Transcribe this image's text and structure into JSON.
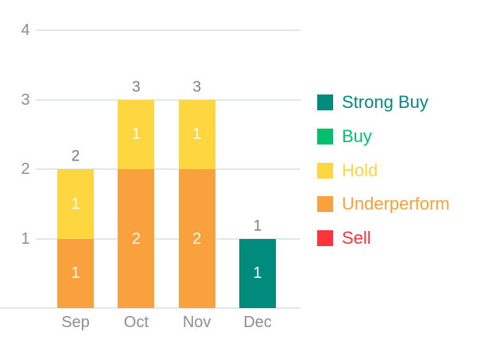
{
  "chart_data": {
    "type": "bar",
    "stacked": true,
    "categories": [
      "Sep",
      "Oct",
      "Nov",
      "Dec"
    ],
    "series": [
      {
        "name": "Sell",
        "color": "#fe333c",
        "values": [
          0,
          0,
          0,
          0
        ]
      },
      {
        "name": "Underperform",
        "color": "#f9a13d",
        "values": [
          1,
          2,
          2,
          0
        ]
      },
      {
        "name": "Hold",
        "color": "#fdd640",
        "values": [
          1,
          1,
          1,
          0
        ]
      },
      {
        "name": "Buy",
        "color": "#00c06e",
        "values": [
          0,
          0,
          0,
          0
        ]
      },
      {
        "name": "Strong Buy",
        "color": "#008b7d",
        "values": [
          0,
          0,
          0,
          1
        ]
      }
    ],
    "totals": [
      2,
      3,
      3,
      1
    ],
    "y_ticks": [
      1,
      2,
      3,
      4
    ],
    "ylim": [
      0,
      4
    ],
    "grid": true,
    "legend_position": "right",
    "legend": [
      {
        "label": "Strong Buy",
        "color": "#008b7d"
      },
      {
        "label": "Buy",
        "color": "#00c06e"
      },
      {
        "label": "Hold",
        "color": "#fdd640"
      },
      {
        "label": "Underperform",
        "color": "#f9a13d"
      },
      {
        "label": "Sell",
        "color": "#fe333c"
      }
    ]
  },
  "colors": {
    "gridline": "#e3e6ea",
    "axis_text": "#8e8e8e",
    "total_text": "#7d7d7d",
    "bar_label_text": "#ffffff",
    "background": "#ffffff"
  }
}
